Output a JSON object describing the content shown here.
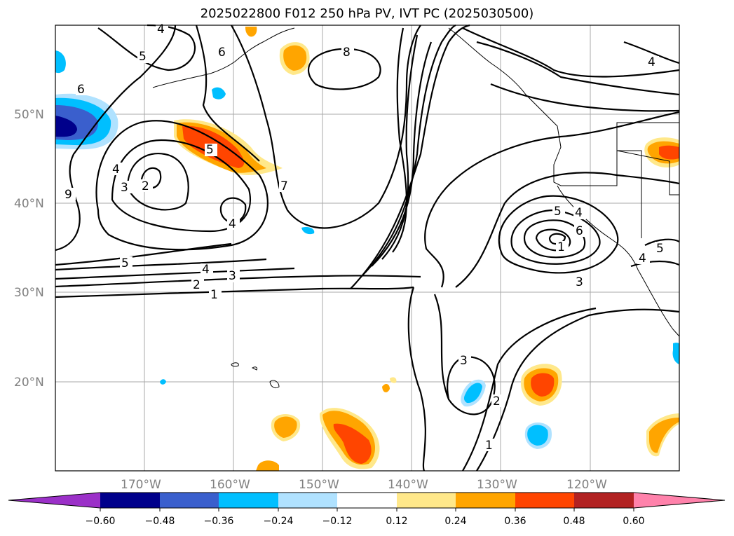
{
  "title": "2025022800 F012 250 hPa PV, IVT PC (2025030500)",
  "map": {
    "lat_labels": [
      "50°N",
      "40°N",
      "30°N",
      "20°N"
    ],
    "lon_labels": [
      "170°W",
      "160°W",
      "150°W",
      "140°W",
      "130°W",
      "120°W"
    ],
    "contour_labels": [
      "4",
      "5",
      "6",
      "8",
      "4",
      "6",
      "5",
      "4",
      "3",
      "2",
      "9",
      "4",
      "7",
      "5",
      "4",
      "3",
      "2",
      "1",
      "5",
      "4",
      "6",
      "1",
      "3",
      "4",
      "5",
      "3",
      "2",
      "1"
    ]
  },
  "colorbar": {
    "ticks": [
      "−0.60",
      "−0.48",
      "−0.36",
      "−0.24",
      "−0.12",
      "0.12",
      "0.24",
      "0.36",
      "0.48",
      "0.60"
    ],
    "colors": [
      "#9b30c8",
      "#00008b",
      "#3a5fcd",
      "#00bfff",
      "#b0e2ff",
      "#ffffff",
      "#ffe88a",
      "#ffa500",
      "#ff4500",
      "#b22222",
      "#ff82ab"
    ]
  }
}
